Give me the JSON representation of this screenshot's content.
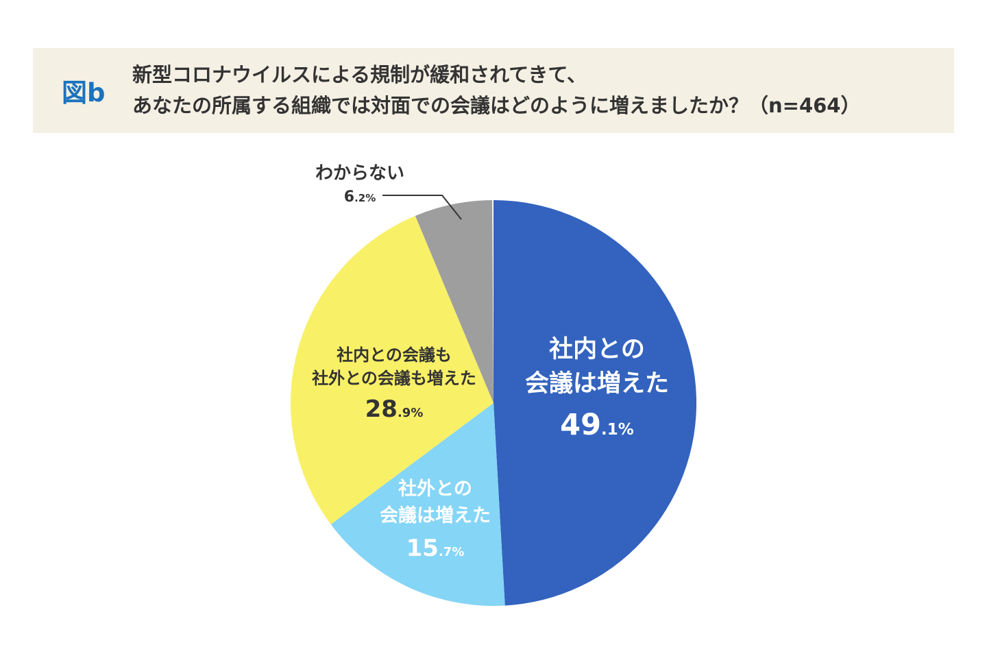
{
  "header": {
    "figure_label": "図b",
    "title_line1": "新型コロナウイルスによる規制が緩和されてきて、",
    "title_line2": "あなたの所属する組織では対面での会議はどのように増えましたか？（n=464）"
  },
  "chart_data": {
    "type": "pie",
    "title": "新型コロナウイルスによる規制が緩和されてきて、あなたの所属する組織では対面での会議はどのように増えましたか？",
    "sample_size_label": "n=464",
    "start_angle": "top",
    "direction": "clockwise",
    "legend_position": "none",
    "slices": [
      {
        "label": "社内との会議は増えた",
        "label_lines": [
          "社内との",
          "会議は増えた"
        ],
        "value": 49.1,
        "color": "#3363be",
        "text_color": "#ffffff",
        "label_position": "inside"
      },
      {
        "label": "社外との会議は増えた",
        "label_lines": [
          "社外との",
          "会議は増えた"
        ],
        "value": 15.7,
        "color": "#85d5f6",
        "text_color": "#ffffff",
        "label_position": "inside"
      },
      {
        "label": "社内との会議も社外との会議も増えた",
        "label_lines": [
          "社内との会議も",
          "社外との会議も増えた"
        ],
        "value": 28.9,
        "color": "#f8f067",
        "text_color": "#333333",
        "label_position": "inside"
      },
      {
        "label": "わからない",
        "label_lines": [
          "わからない"
        ],
        "value": 6.2,
        "color": "#9e9e9e",
        "text_color": "#333333",
        "label_position": "outside"
      }
    ]
  }
}
